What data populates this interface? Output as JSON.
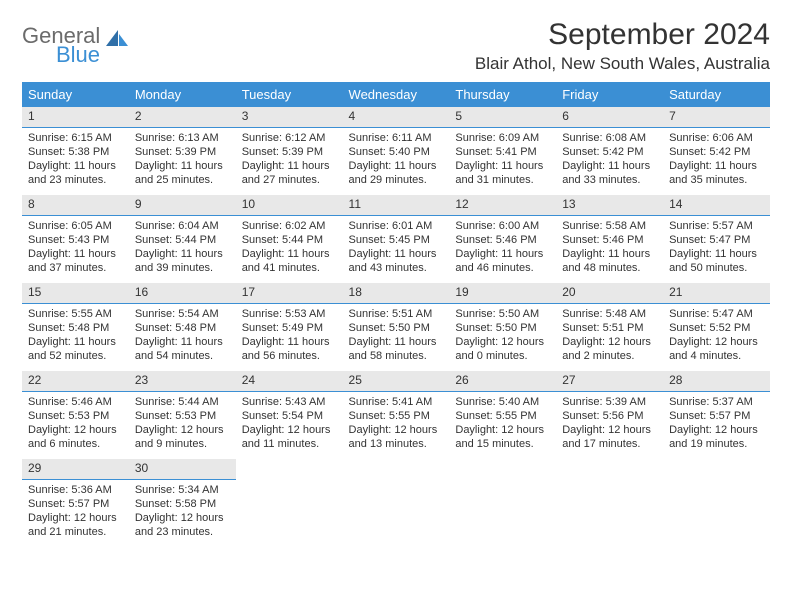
{
  "logo": {
    "line1": "General",
    "line2": "Blue"
  },
  "title": "September 2024",
  "location": "Blair Athol, New South Wales, Australia",
  "weekday_header_bg": "#3b8fd4",
  "weekday_header_fg": "#ffffff",
  "daynum_bg": "#e8e8e8",
  "daynum_border": "#3b8fd4",
  "text_color": "#333333",
  "weekdays": [
    "Sunday",
    "Monday",
    "Tuesday",
    "Wednesday",
    "Thursday",
    "Friday",
    "Saturday"
  ],
  "weeks": [
    [
      {
        "n": "1",
        "sr": "Sunrise: 6:15 AM",
        "ss": "Sunset: 5:38 PM",
        "d1": "Daylight: 11 hours",
        "d2": "and 23 minutes."
      },
      {
        "n": "2",
        "sr": "Sunrise: 6:13 AM",
        "ss": "Sunset: 5:39 PM",
        "d1": "Daylight: 11 hours",
        "d2": "and 25 minutes."
      },
      {
        "n": "3",
        "sr": "Sunrise: 6:12 AM",
        "ss": "Sunset: 5:39 PM",
        "d1": "Daylight: 11 hours",
        "d2": "and 27 minutes."
      },
      {
        "n": "4",
        "sr": "Sunrise: 6:11 AM",
        "ss": "Sunset: 5:40 PM",
        "d1": "Daylight: 11 hours",
        "d2": "and 29 minutes."
      },
      {
        "n": "5",
        "sr": "Sunrise: 6:09 AM",
        "ss": "Sunset: 5:41 PM",
        "d1": "Daylight: 11 hours",
        "d2": "and 31 minutes."
      },
      {
        "n": "6",
        "sr": "Sunrise: 6:08 AM",
        "ss": "Sunset: 5:42 PM",
        "d1": "Daylight: 11 hours",
        "d2": "and 33 minutes."
      },
      {
        "n": "7",
        "sr": "Sunrise: 6:06 AM",
        "ss": "Sunset: 5:42 PM",
        "d1": "Daylight: 11 hours",
        "d2": "and 35 minutes."
      }
    ],
    [
      {
        "n": "8",
        "sr": "Sunrise: 6:05 AM",
        "ss": "Sunset: 5:43 PM",
        "d1": "Daylight: 11 hours",
        "d2": "and 37 minutes."
      },
      {
        "n": "9",
        "sr": "Sunrise: 6:04 AM",
        "ss": "Sunset: 5:44 PM",
        "d1": "Daylight: 11 hours",
        "d2": "and 39 minutes."
      },
      {
        "n": "10",
        "sr": "Sunrise: 6:02 AM",
        "ss": "Sunset: 5:44 PM",
        "d1": "Daylight: 11 hours",
        "d2": "and 41 minutes."
      },
      {
        "n": "11",
        "sr": "Sunrise: 6:01 AM",
        "ss": "Sunset: 5:45 PM",
        "d1": "Daylight: 11 hours",
        "d2": "and 43 minutes."
      },
      {
        "n": "12",
        "sr": "Sunrise: 6:00 AM",
        "ss": "Sunset: 5:46 PM",
        "d1": "Daylight: 11 hours",
        "d2": "and 46 minutes."
      },
      {
        "n": "13",
        "sr": "Sunrise: 5:58 AM",
        "ss": "Sunset: 5:46 PM",
        "d1": "Daylight: 11 hours",
        "d2": "and 48 minutes."
      },
      {
        "n": "14",
        "sr": "Sunrise: 5:57 AM",
        "ss": "Sunset: 5:47 PM",
        "d1": "Daylight: 11 hours",
        "d2": "and 50 minutes."
      }
    ],
    [
      {
        "n": "15",
        "sr": "Sunrise: 5:55 AM",
        "ss": "Sunset: 5:48 PM",
        "d1": "Daylight: 11 hours",
        "d2": "and 52 minutes."
      },
      {
        "n": "16",
        "sr": "Sunrise: 5:54 AM",
        "ss": "Sunset: 5:48 PM",
        "d1": "Daylight: 11 hours",
        "d2": "and 54 minutes."
      },
      {
        "n": "17",
        "sr": "Sunrise: 5:53 AM",
        "ss": "Sunset: 5:49 PM",
        "d1": "Daylight: 11 hours",
        "d2": "and 56 minutes."
      },
      {
        "n": "18",
        "sr": "Sunrise: 5:51 AM",
        "ss": "Sunset: 5:50 PM",
        "d1": "Daylight: 11 hours",
        "d2": "and 58 minutes."
      },
      {
        "n": "19",
        "sr": "Sunrise: 5:50 AM",
        "ss": "Sunset: 5:50 PM",
        "d1": "Daylight: 12 hours",
        "d2": "and 0 minutes."
      },
      {
        "n": "20",
        "sr": "Sunrise: 5:48 AM",
        "ss": "Sunset: 5:51 PM",
        "d1": "Daylight: 12 hours",
        "d2": "and 2 minutes."
      },
      {
        "n": "21",
        "sr": "Sunrise: 5:47 AM",
        "ss": "Sunset: 5:52 PM",
        "d1": "Daylight: 12 hours",
        "d2": "and 4 minutes."
      }
    ],
    [
      {
        "n": "22",
        "sr": "Sunrise: 5:46 AM",
        "ss": "Sunset: 5:53 PM",
        "d1": "Daylight: 12 hours",
        "d2": "and 6 minutes."
      },
      {
        "n": "23",
        "sr": "Sunrise: 5:44 AM",
        "ss": "Sunset: 5:53 PM",
        "d1": "Daylight: 12 hours",
        "d2": "and 9 minutes."
      },
      {
        "n": "24",
        "sr": "Sunrise: 5:43 AM",
        "ss": "Sunset: 5:54 PM",
        "d1": "Daylight: 12 hours",
        "d2": "and 11 minutes."
      },
      {
        "n": "25",
        "sr": "Sunrise: 5:41 AM",
        "ss": "Sunset: 5:55 PM",
        "d1": "Daylight: 12 hours",
        "d2": "and 13 minutes."
      },
      {
        "n": "26",
        "sr": "Sunrise: 5:40 AM",
        "ss": "Sunset: 5:55 PM",
        "d1": "Daylight: 12 hours",
        "d2": "and 15 minutes."
      },
      {
        "n": "27",
        "sr": "Sunrise: 5:39 AM",
        "ss": "Sunset: 5:56 PM",
        "d1": "Daylight: 12 hours",
        "d2": "and 17 minutes."
      },
      {
        "n": "28",
        "sr": "Sunrise: 5:37 AM",
        "ss": "Sunset: 5:57 PM",
        "d1": "Daylight: 12 hours",
        "d2": "and 19 minutes."
      }
    ],
    [
      {
        "n": "29",
        "sr": "Sunrise: 5:36 AM",
        "ss": "Sunset: 5:57 PM",
        "d1": "Daylight: 12 hours",
        "d2": "and 21 minutes."
      },
      {
        "n": "30",
        "sr": "Sunrise: 5:34 AM",
        "ss": "Sunset: 5:58 PM",
        "d1": "Daylight: 12 hours",
        "d2": "and 23 minutes."
      },
      null,
      null,
      null,
      null,
      null
    ]
  ]
}
